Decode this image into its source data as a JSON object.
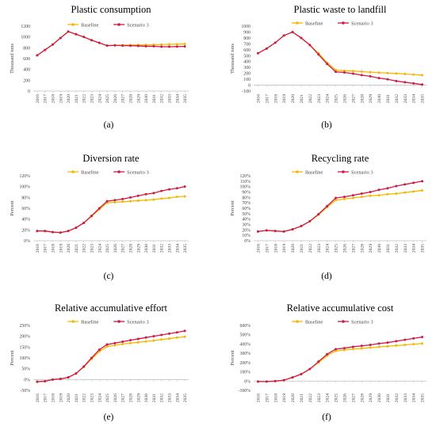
{
  "colors": {
    "baseline": "#F5B800",
    "scenario": "#D11845",
    "axis": "#bfbfbf",
    "text": "#000000",
    "ticktext": "#444444"
  },
  "years": [
    "2016",
    "2017",
    "2018",
    "2019",
    "2020",
    "2021",
    "2022",
    "2023",
    "2024",
    "2025",
    "2026",
    "2027",
    "2028",
    "2029",
    "2030",
    "2031",
    "2032",
    "2033",
    "2034",
    "2035"
  ],
  "chart_data": [
    {
      "type": "line",
      "caption": "(a)",
      "title": "Plastic consumption",
      "xlabel": "",
      "ylabel": "Thousand tons",
      "ylim": [
        0,
        1200
      ],
      "yticks": [
        0,
        200,
        400,
        600,
        800,
        1000,
        1200
      ],
      "ytick_labels": [
        "0",
        "200",
        "400",
        "600",
        "800",
        "1000",
        "1200"
      ],
      "series": [
        {
          "name": "Baseline",
          "values": [
            660,
            760,
            860,
            980,
            1100,
            1050,
            1000,
            940,
            890,
            840,
            845,
            848,
            850,
            852,
            854,
            857,
            860,
            863,
            866,
            870
          ]
        },
        {
          "name": "Scenario 3",
          "values": [
            660,
            760,
            860,
            980,
            1100,
            1050,
            1000,
            940,
            890,
            840,
            845,
            840,
            838,
            835,
            828,
            828,
            820,
            820,
            822,
            825
          ]
        }
      ]
    },
    {
      "type": "line",
      "caption": "(b)",
      "title": "Plastic waste to landfill",
      "xlabel": "",
      "ylabel": "Thousand tons",
      "ylim": [
        -100,
        1000
      ],
      "yticks": [
        -100,
        0,
        100,
        200,
        300,
        400,
        500,
        600,
        700,
        800,
        900,
        1000
      ],
      "ytick_labels": [
        "-100",
        "0",
        "100",
        "200",
        "300",
        "400",
        "500",
        "600",
        "700",
        "800",
        "900",
        "1000"
      ],
      "series": [
        {
          "name": "Baseline",
          "values": [
            540,
            620,
            720,
            840,
            900,
            800,
            680,
            540,
            380,
            255,
            245,
            238,
            230,
            220,
            212,
            205,
            198,
            190,
            180,
            170
          ]
        },
        {
          "name": "Scenario 3",
          "values": [
            540,
            620,
            720,
            840,
            900,
            800,
            680,
            520,
            360,
            225,
            215,
            195,
            170,
            150,
            120,
            100,
            70,
            50,
            30,
            10
          ]
        }
      ]
    },
    {
      "type": "line",
      "caption": "(c)",
      "title": "Diversion rate",
      "xlabel": "",
      "ylabel": "Percent",
      "ylim": [
        0,
        120
      ],
      "yticks": [
        0,
        20,
        40,
        60,
        80,
        100,
        120
      ],
      "ytick_labels": [
        "0%",
        "20%",
        "40%",
        "60%",
        "80%",
        "100%",
        "120%"
      ],
      "series": [
        {
          "name": "Baseline",
          "values": [
            18,
            18,
            16,
            15,
            18,
            24,
            33,
            45,
            58,
            70,
            71,
            72,
            73,
            74,
            75,
            76,
            78,
            79,
            81,
            82
          ]
        },
        {
          "name": "Scenario 3",
          "values": [
            18,
            18,
            16,
            15,
            18,
            24,
            33,
            46,
            60,
            73,
            75,
            77,
            80,
            83,
            86,
            88,
            92,
            95,
            97,
            100
          ]
        }
      ]
    },
    {
      "type": "line",
      "caption": "(d)",
      "title": "Recycling rate",
      "xlabel": "",
      "ylabel": "Percent",
      "ylim": [
        0,
        120
      ],
      "yticks": [
        0,
        10,
        20,
        30,
        40,
        50,
        60,
        70,
        80,
        90,
        100,
        110,
        120
      ],
      "ytick_labels": [
        "0%",
        "10%",
        "20%",
        "30%",
        "40%",
        "50%",
        "60%",
        "70%",
        "80%",
        "90%",
        "100%",
        "110%",
        "120%"
      ],
      "series": [
        {
          "name": "Baseline",
          "values": [
            17,
            19,
            18,
            17,
            21,
            27,
            36,
            48,
            62,
            75,
            77,
            79,
            81,
            83,
            84,
            86,
            87,
            89,
            91,
            93
          ]
        },
        {
          "name": "Scenario 3",
          "values": [
            17,
            19,
            18,
            17,
            21,
            27,
            36,
            49,
            64,
            79,
            81,
            84,
            87,
            90,
            94,
            97,
            101,
            104,
            107,
            110
          ]
        }
      ]
    },
    {
      "type": "line",
      "caption": "(e)",
      "title": "Relative accumulative effort",
      "xlabel": "",
      "ylabel": "Percent",
      "ylim": [
        -50,
        250
      ],
      "yticks": [
        -50,
        0,
        50,
        100,
        150,
        200,
        250
      ],
      "ytick_labels": [
        "-50%",
        "0%",
        "50%",
        "100%",
        "150%",
        "200%",
        "250%"
      ],
      "series": [
        {
          "name": "Baseline",
          "values": [
            -10,
            -8,
            0,
            3,
            10,
            28,
            58,
            95,
            130,
            152,
            158,
            164,
            168,
            172,
            176,
            180,
            185,
            189,
            194,
            198
          ]
        },
        {
          "name": "Scenario 3",
          "values": [
            -10,
            -8,
            0,
            3,
            10,
            28,
            60,
            100,
            138,
            162,
            168,
            175,
            182,
            188,
            194,
            200,
            206,
            212,
            218,
            225
          ]
        }
      ]
    },
    {
      "type": "line",
      "caption": "(f)",
      "title": "Relative accumulative cost",
      "xlabel": "",
      "ylabel": "Percent",
      "ylim": [
        -100,
        600
      ],
      "yticks": [
        -100,
        0,
        100,
        200,
        300,
        400,
        500,
        600
      ],
      "ytick_labels": [
        "-100%",
        "0%",
        "100%",
        "200%",
        "300%",
        "400%",
        "500%",
        "600%"
      ],
      "series": [
        {
          "name": "Baseline",
          "values": [
            -5,
            -5,
            0,
            10,
            40,
            75,
            130,
            200,
            275,
            325,
            335,
            345,
            352,
            360,
            368,
            375,
            383,
            390,
            398,
            405
          ]
        },
        {
          "name": "Scenario 3",
          "values": [
            -5,
            -5,
            0,
            10,
            40,
            75,
            130,
            210,
            290,
            345,
            355,
            370,
            380,
            390,
            405,
            415,
            430,
            445,
            460,
            475
          ]
        }
      ]
    }
  ]
}
